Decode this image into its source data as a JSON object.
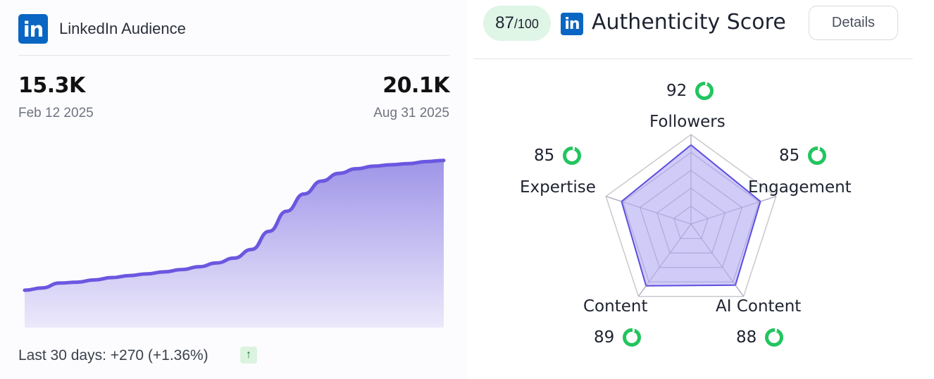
{
  "audience": {
    "title": "LinkedIn Audience",
    "logo_text": "in",
    "start_value": "15.3K",
    "start_date": "Feb 12 2025",
    "end_value": "20.1K",
    "end_date": "Aug 31 2025",
    "footer": "Last 30 days: +270 (+1.36%)",
    "trend_icon": "arrow-up-icon",
    "trend_glyph": "↑"
  },
  "chart_data": {
    "type": "area",
    "series": [
      {
        "values": [
          15.3,
          15.38,
          15.55,
          15.58,
          15.66,
          15.74,
          15.81,
          15.87,
          15.94,
          16.02,
          16.12,
          16.25,
          16.42,
          16.72,
          17.35,
          18.05,
          18.65,
          19.1,
          19.37,
          19.53,
          19.62,
          19.67,
          19.71,
          19.78,
          19.82
        ]
      }
    ],
    "line_color": "#6b57e0",
    "fill_color_top": "#9f95e8",
    "fill_color_bottom": "#ece9fb"
  },
  "authenticity": {
    "score": "87",
    "score_denominator": "/100",
    "logo_text": "in",
    "title": "Authenticity Score",
    "details_label": "Details",
    "axes": [
      {
        "label": "Followers",
        "score": "92",
        "value": 92
      },
      {
        "label": "Engagement",
        "score": "85",
        "value": 85
      },
      {
        "label": "AI Content",
        "score": "88",
        "value": 88
      },
      {
        "label": "Content",
        "score": "89",
        "value": 89
      },
      {
        "label": "Expertise",
        "score": "85",
        "value": 85
      }
    ],
    "radar_fill": "#c9c2f7",
    "radar_stroke": "#5b4ee0",
    "ring_color": "#22c55e"
  }
}
